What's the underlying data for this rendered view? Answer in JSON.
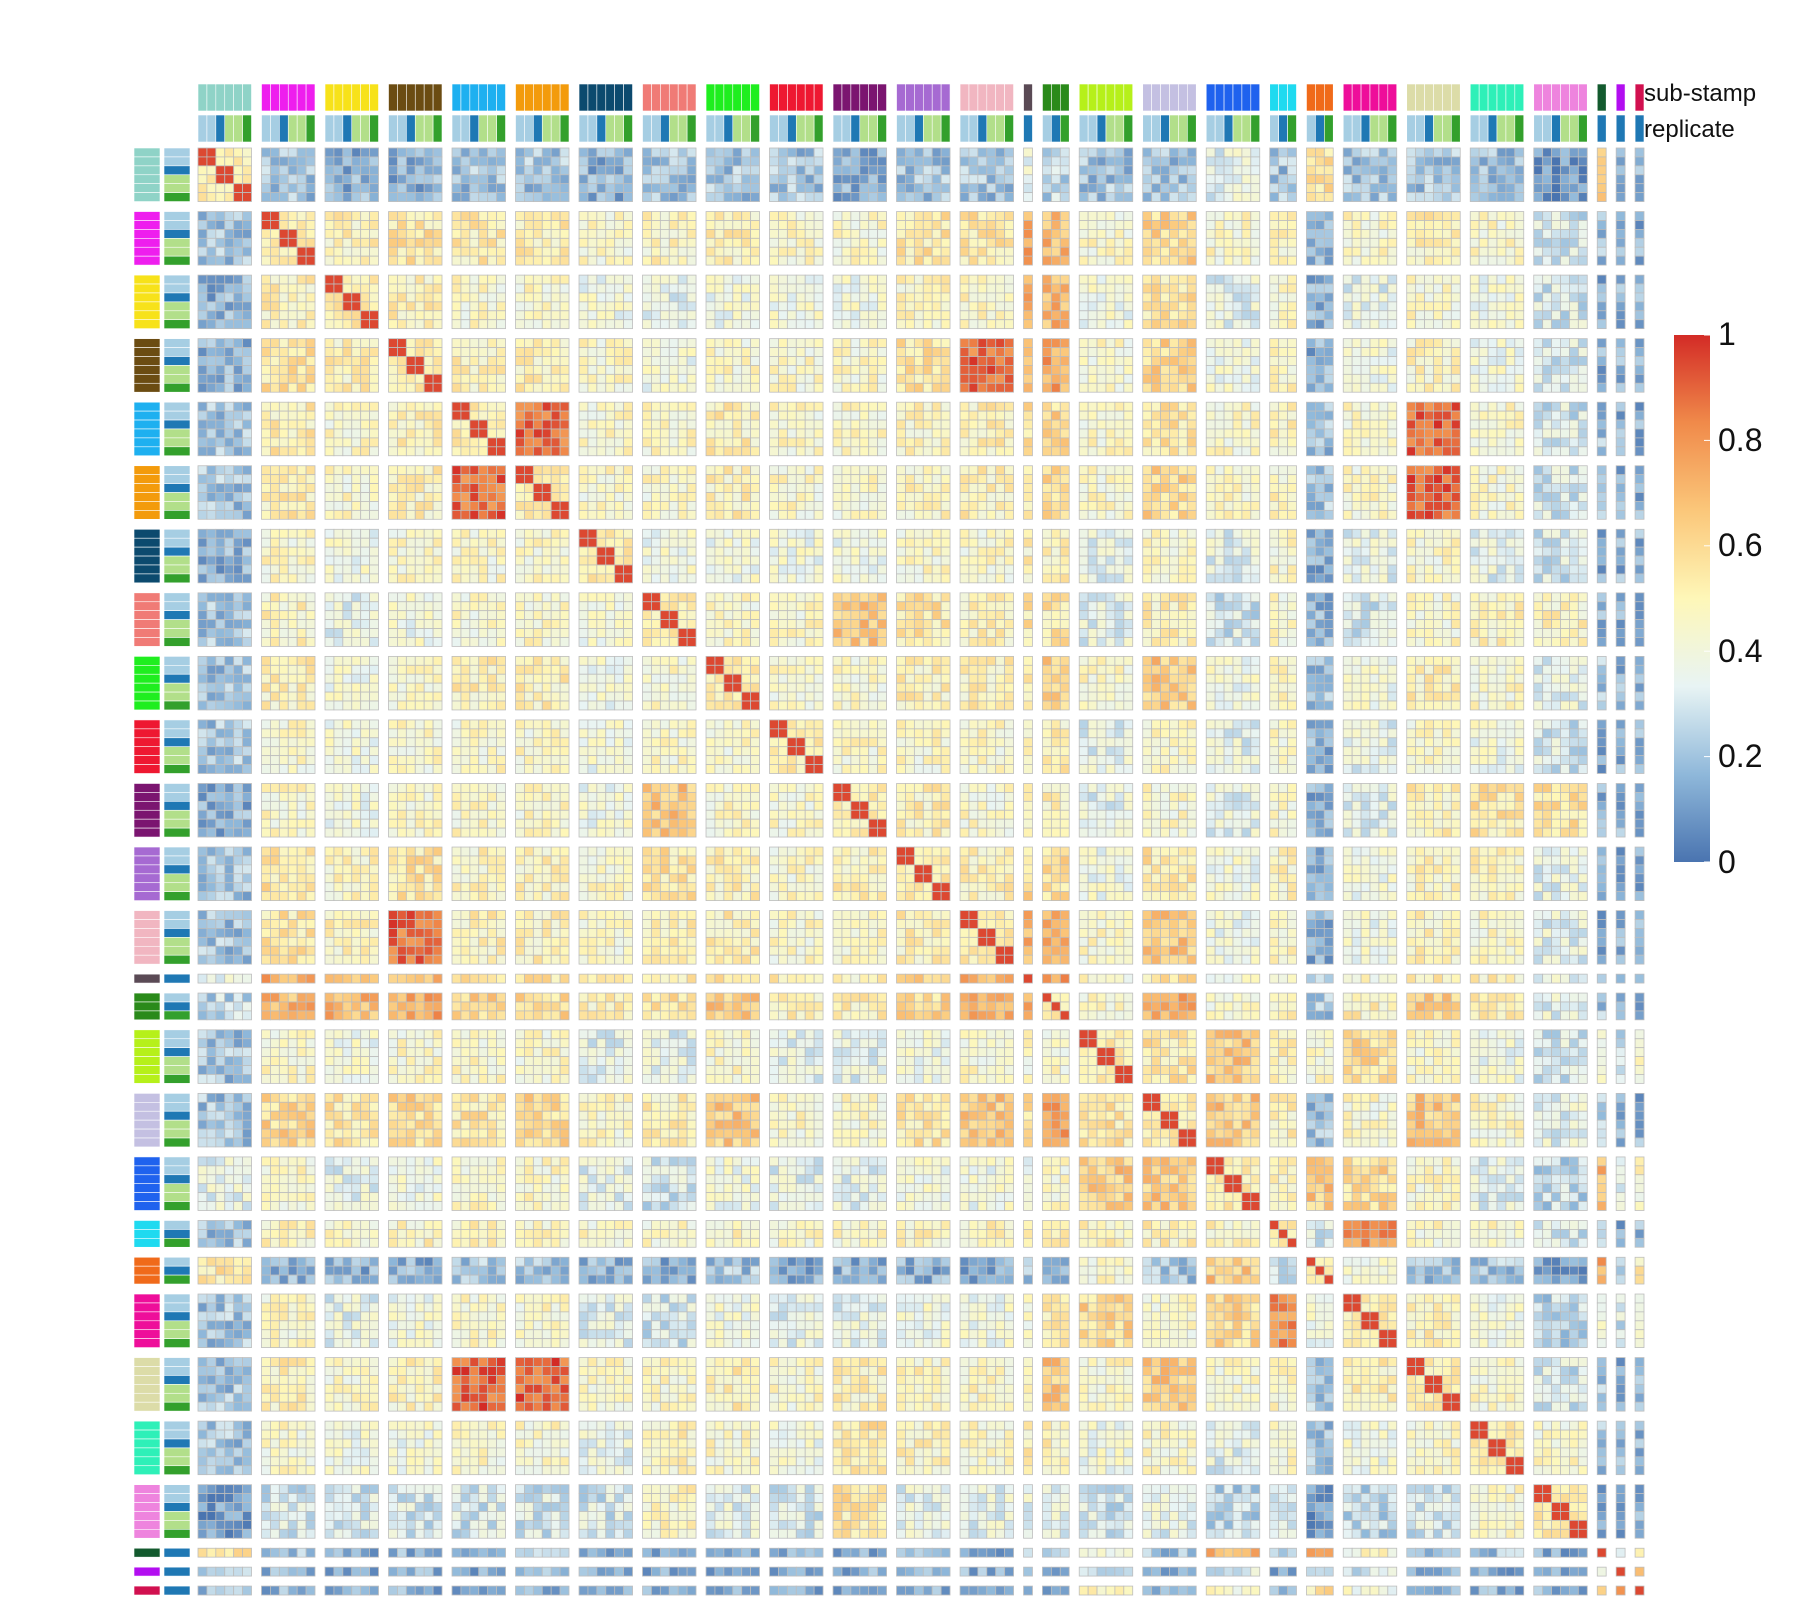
{
  "chart_data": {
    "type": "heatmap",
    "title": "",
    "xlabel": "",
    "ylabel": "",
    "annotation_tracks": [
      "sub-stamp",
      "replicate"
    ],
    "color_scale": {
      "min": 0,
      "max": 1,
      "ticks": [
        "0",
        "0.2",
        "0.4",
        "0.6",
        "0.8",
        "1"
      ],
      "colors": [
        "#4a74b0",
        "#8fb8da",
        "#e8f4f4",
        "#fef7b8",
        "#fbc77a",
        "#f08a4a",
        "#d32b26"
      ]
    },
    "grid_line_color": "#bdbdbd",
    "groups": [
      {
        "color": "#8fd3c7",
        "n": 6
      },
      {
        "color": "#ee1eee",
        "n": 6
      },
      {
        "color": "#f7e21a",
        "n": 6
      },
      {
        "color": "#6b4c12",
        "n": 6
      },
      {
        "color": "#1eb0f0",
        "n": 6
      },
      {
        "color": "#f39b0c",
        "n": 6
      },
      {
        "color": "#0c4a6e",
        "n": 6
      },
      {
        "color": "#f07b76",
        "n": 6
      },
      {
        "color": "#1fee1f",
        "n": 6
      },
      {
        "color": "#ee1831",
        "n": 6
      },
      {
        "color": "#7b1570",
        "n": 6
      },
      {
        "color": "#a66ad2",
        "n": 6
      },
      {
        "color": "#f1b6c1",
        "n": 6
      },
      {
        "color": "#5a4a55",
        "n": 1
      },
      {
        "color": "#2a8a1a",
        "n": 3
      },
      {
        "color": "#b6f01a",
        "n": 6
      },
      {
        "color": "#c4c0e2",
        "n": 6
      },
      {
        "color": "#1f62ee",
        "n": 6
      },
      {
        "color": "#1fdaf0",
        "n": 3
      },
      {
        "color": "#f06a1a",
        "n": 3
      },
      {
        "color": "#ee0e9a",
        "n": 6
      },
      {
        "color": "#dcdca8",
        "n": 6
      },
      {
        "color": "#2ef0b8",
        "n": 6
      },
      {
        "color": "#ee84de",
        "n": 6
      },
      {
        "color": "#135a2e",
        "n": 1
      },
      {
        "color": "#b20ef0",
        "n": 1
      },
      {
        "color": "#d1104f",
        "n": 1
      }
    ],
    "replicate_colors": [
      "#a6cee3",
      "#1f78b4",
      "#b2df8a",
      "#33a02c"
    ],
    "within_group_correlation": 0.95,
    "block_correlation": [
      [
        1.0,
        0.2,
        0.15,
        0.15,
        0.2,
        0.2,
        0.15,
        0.2,
        0.2,
        0.2,
        0.15,
        0.2,
        0.2,
        0.35,
        0.25,
        0.2,
        0.2,
        0.35,
        0.2,
        0.55,
        0.2,
        0.2,
        0.2,
        0.1,
        0.6,
        0.2,
        0.2
      ],
      [
        0.2,
        1.0,
        0.5,
        0.55,
        0.52,
        0.52,
        0.45,
        0.48,
        0.5,
        0.45,
        0.45,
        0.55,
        0.55,
        0.75,
        0.7,
        0.45,
        0.6,
        0.45,
        0.48,
        0.15,
        0.45,
        0.5,
        0.45,
        0.3,
        0.2,
        0.15,
        0.15
      ],
      [
        0.15,
        0.5,
        1.0,
        0.5,
        0.45,
        0.45,
        0.4,
        0.35,
        0.4,
        0.4,
        0.4,
        0.48,
        0.48,
        0.7,
        0.7,
        0.4,
        0.55,
        0.35,
        0.45,
        0.15,
        0.35,
        0.45,
        0.4,
        0.3,
        0.15,
        0.15,
        0.15
      ],
      [
        0.15,
        0.55,
        0.5,
        1.0,
        0.5,
        0.5,
        0.45,
        0.4,
        0.45,
        0.45,
        0.45,
        0.55,
        0.88,
        0.7,
        0.75,
        0.45,
        0.6,
        0.4,
        0.48,
        0.15,
        0.4,
        0.48,
        0.4,
        0.3,
        0.15,
        0.15,
        0.15
      ],
      [
        0.2,
        0.52,
        0.45,
        0.5,
        1.0,
        0.88,
        0.45,
        0.45,
        0.5,
        0.45,
        0.45,
        0.48,
        0.5,
        0.55,
        0.6,
        0.45,
        0.55,
        0.45,
        0.48,
        0.2,
        0.45,
        0.9,
        0.45,
        0.3,
        0.2,
        0.15,
        0.15
      ],
      [
        0.2,
        0.52,
        0.45,
        0.5,
        0.88,
        1.0,
        0.45,
        0.45,
        0.5,
        0.45,
        0.45,
        0.48,
        0.5,
        0.55,
        0.6,
        0.45,
        0.6,
        0.45,
        0.48,
        0.2,
        0.45,
        0.9,
        0.45,
        0.3,
        0.2,
        0.15,
        0.15
      ],
      [
        0.15,
        0.45,
        0.4,
        0.45,
        0.45,
        0.45,
        1.0,
        0.4,
        0.4,
        0.4,
        0.4,
        0.45,
        0.45,
        0.5,
        0.5,
        0.35,
        0.45,
        0.35,
        0.45,
        0.15,
        0.35,
        0.45,
        0.35,
        0.3,
        0.15,
        0.15,
        0.15
      ],
      [
        0.2,
        0.48,
        0.35,
        0.4,
        0.45,
        0.45,
        0.4,
        1.0,
        0.45,
        0.45,
        0.65,
        0.55,
        0.5,
        0.55,
        0.55,
        0.35,
        0.5,
        0.3,
        0.45,
        0.15,
        0.3,
        0.45,
        0.48,
        0.48,
        0.15,
        0.15,
        0.15
      ],
      [
        0.2,
        0.5,
        0.4,
        0.45,
        0.5,
        0.5,
        0.4,
        0.45,
        1.0,
        0.45,
        0.45,
        0.5,
        0.5,
        0.55,
        0.65,
        0.45,
        0.65,
        0.4,
        0.48,
        0.2,
        0.4,
        0.5,
        0.45,
        0.35,
        0.2,
        0.15,
        0.15
      ],
      [
        0.2,
        0.45,
        0.4,
        0.45,
        0.45,
        0.45,
        0.4,
        0.45,
        0.45,
        1.0,
        0.45,
        0.45,
        0.45,
        0.5,
        0.5,
        0.35,
        0.45,
        0.35,
        0.45,
        0.15,
        0.35,
        0.45,
        0.4,
        0.3,
        0.15,
        0.15,
        0.15
      ],
      [
        0.15,
        0.45,
        0.4,
        0.45,
        0.45,
        0.45,
        0.4,
        0.65,
        0.45,
        0.45,
        1.0,
        0.5,
        0.45,
        0.5,
        0.5,
        0.35,
        0.45,
        0.35,
        0.45,
        0.15,
        0.35,
        0.5,
        0.55,
        0.55,
        0.15,
        0.15,
        0.15
      ],
      [
        0.2,
        0.55,
        0.48,
        0.55,
        0.48,
        0.48,
        0.45,
        0.55,
        0.5,
        0.45,
        0.5,
        1.0,
        0.5,
        0.6,
        0.6,
        0.4,
        0.55,
        0.4,
        0.48,
        0.15,
        0.4,
        0.48,
        0.48,
        0.35,
        0.15,
        0.15,
        0.15
      ],
      [
        0.2,
        0.55,
        0.48,
        0.88,
        0.5,
        0.5,
        0.45,
        0.5,
        0.5,
        0.45,
        0.45,
        0.5,
        1.0,
        0.7,
        0.75,
        0.45,
        0.65,
        0.4,
        0.48,
        0.15,
        0.4,
        0.48,
        0.45,
        0.35,
        0.15,
        0.15,
        0.15
      ],
      [
        0.35,
        0.75,
        0.7,
        0.7,
        0.55,
        0.55,
        0.5,
        0.55,
        0.55,
        0.5,
        0.5,
        0.6,
        0.7,
        1.0,
        0.75,
        0.45,
        0.55,
        0.4,
        0.45,
        0.2,
        0.45,
        0.5,
        0.5,
        0.35,
        0.2,
        0.15,
        0.15
      ],
      [
        0.25,
        0.7,
        0.7,
        0.75,
        0.6,
        0.6,
        0.5,
        0.55,
        0.65,
        0.5,
        0.5,
        0.6,
        0.75,
        0.75,
        1.0,
        0.45,
        0.75,
        0.45,
        0.5,
        0.2,
        0.5,
        0.65,
        0.5,
        0.35,
        0.2,
        0.15,
        0.15
      ],
      [
        0.2,
        0.45,
        0.4,
        0.45,
        0.45,
        0.45,
        0.35,
        0.35,
        0.45,
        0.35,
        0.35,
        0.4,
        0.45,
        0.45,
        0.45,
        1.0,
        0.55,
        0.65,
        0.5,
        0.45,
        0.6,
        0.45,
        0.4,
        0.3,
        0.45,
        0.3,
        0.45
      ],
      [
        0.2,
        0.6,
        0.55,
        0.6,
        0.55,
        0.6,
        0.45,
        0.5,
        0.65,
        0.45,
        0.45,
        0.55,
        0.65,
        0.55,
        0.75,
        0.55,
        1.0,
        0.65,
        0.5,
        0.2,
        0.45,
        0.65,
        0.45,
        0.35,
        0.2,
        0.15,
        0.15
      ],
      [
        0.35,
        0.45,
        0.35,
        0.4,
        0.45,
        0.45,
        0.35,
        0.3,
        0.4,
        0.35,
        0.35,
        0.4,
        0.4,
        0.4,
        0.45,
        0.65,
        0.65,
        1.0,
        0.48,
        0.65,
        0.6,
        0.45,
        0.35,
        0.25,
        0.7,
        0.3,
        0.45
      ],
      [
        0.2,
        0.48,
        0.45,
        0.48,
        0.48,
        0.48,
        0.45,
        0.45,
        0.48,
        0.45,
        0.45,
        0.48,
        0.48,
        0.45,
        0.5,
        0.5,
        0.5,
        0.48,
        1.0,
        0.3,
        0.8,
        0.45,
        0.45,
        0.3,
        0.2,
        0.15,
        0.15
      ],
      [
        0.55,
        0.15,
        0.15,
        0.15,
        0.2,
        0.2,
        0.15,
        0.15,
        0.2,
        0.15,
        0.15,
        0.15,
        0.15,
        0.2,
        0.2,
        0.45,
        0.2,
        0.65,
        0.3,
        1.0,
        0.4,
        0.2,
        0.2,
        0.1,
        0.75,
        0.3,
        0.55
      ],
      [
        0.2,
        0.45,
        0.35,
        0.4,
        0.45,
        0.45,
        0.35,
        0.3,
        0.4,
        0.35,
        0.35,
        0.4,
        0.4,
        0.45,
        0.5,
        0.6,
        0.45,
        0.6,
        0.8,
        0.4,
        1.0,
        0.5,
        0.4,
        0.25,
        0.45,
        0.3,
        0.4
      ],
      [
        0.2,
        0.5,
        0.45,
        0.48,
        0.9,
        0.9,
        0.45,
        0.45,
        0.5,
        0.45,
        0.5,
        0.48,
        0.48,
        0.5,
        0.65,
        0.45,
        0.65,
        0.45,
        0.45,
        0.2,
        0.5,
        1.0,
        0.45,
        0.3,
        0.2,
        0.15,
        0.15
      ],
      [
        0.2,
        0.45,
        0.4,
        0.4,
        0.45,
        0.45,
        0.35,
        0.48,
        0.45,
        0.4,
        0.55,
        0.48,
        0.45,
        0.5,
        0.5,
        0.4,
        0.45,
        0.35,
        0.45,
        0.2,
        0.4,
        0.45,
        1.0,
        0.45,
        0.2,
        0.15,
        0.15
      ],
      [
        0.1,
        0.3,
        0.3,
        0.3,
        0.3,
        0.3,
        0.3,
        0.48,
        0.35,
        0.3,
        0.55,
        0.35,
        0.35,
        0.35,
        0.35,
        0.3,
        0.35,
        0.25,
        0.3,
        0.1,
        0.25,
        0.3,
        0.45,
        1.0,
        0.15,
        0.15,
        0.15
      ],
      [
        0.6,
        0.2,
        0.15,
        0.15,
        0.2,
        0.2,
        0.15,
        0.15,
        0.2,
        0.15,
        0.15,
        0.15,
        0.15,
        0.2,
        0.2,
        0.45,
        0.2,
        0.7,
        0.2,
        0.75,
        0.45,
        0.2,
        0.2,
        0.15,
        1.0,
        0.3,
        0.55
      ],
      [
        0.2,
        0.15,
        0.15,
        0.15,
        0.15,
        0.15,
        0.15,
        0.15,
        0.15,
        0.15,
        0.15,
        0.15,
        0.15,
        0.15,
        0.15,
        0.3,
        0.15,
        0.3,
        0.15,
        0.3,
        0.3,
        0.15,
        0.15,
        0.15,
        0.3,
        1.0,
        0.8
      ],
      [
        0.2,
        0.15,
        0.15,
        0.15,
        0.15,
        0.15,
        0.15,
        0.15,
        0.15,
        0.15,
        0.15,
        0.15,
        0.15,
        0.15,
        0.15,
        0.45,
        0.15,
        0.45,
        0.15,
        0.55,
        0.4,
        0.15,
        0.15,
        0.15,
        0.55,
        0.8,
        1.0
      ]
    ]
  }
}
